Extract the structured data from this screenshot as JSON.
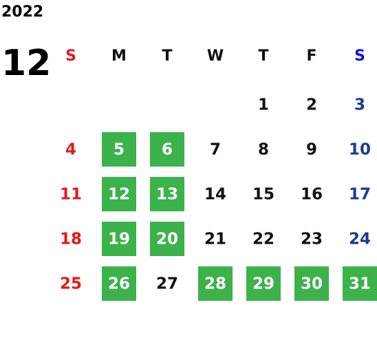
{
  "year": "2022",
  "month": "12",
  "weekdays": [
    "S",
    "M",
    "T",
    "W",
    "T",
    "F",
    "S"
  ],
  "weeks": [
    [
      null,
      null,
      null,
      null,
      {
        "day": 1
      },
      {
        "day": 2
      },
      {
        "day": 3
      }
    ],
    [
      {
        "day": 4
      },
      {
        "day": 5,
        "marked": true
      },
      {
        "day": 6,
        "marked": true
      },
      {
        "day": 7
      },
      {
        "day": 8
      },
      {
        "day": 9
      },
      {
        "day": 10
      }
    ],
    [
      {
        "day": 11
      },
      {
        "day": 12,
        "marked": true
      },
      {
        "day": 13,
        "marked": true
      },
      {
        "day": 14
      },
      {
        "day": 15
      },
      {
        "day": 16
      },
      {
        "day": 17
      }
    ],
    [
      {
        "day": 18
      },
      {
        "day": 19,
        "marked": true
      },
      {
        "day": 20,
        "marked": true
      },
      {
        "day": 21
      },
      {
        "day": 22
      },
      {
        "day": 23
      },
      {
        "day": 24
      }
    ],
    [
      {
        "day": 25
      },
      {
        "day": 26,
        "marked": true
      },
      {
        "day": 27
      },
      {
        "day": 28,
        "marked": true
      },
      {
        "day": 29,
        "marked": true
      },
      {
        "day": 30,
        "marked": true
      },
      {
        "day": 31,
        "marked": true
      }
    ]
  ]
}
